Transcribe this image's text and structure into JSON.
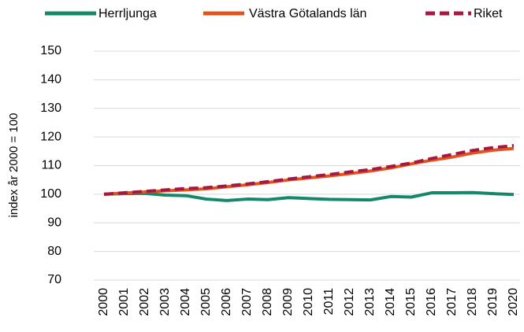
{
  "chart_data": {
    "type": "line",
    "y_label": "index år 2000 = 100",
    "categories": [
      "2000",
      "2001",
      "2002",
      "2003",
      "2004",
      "2005",
      "2006",
      "2007",
      "2008",
      "2009",
      "2010",
      "2011",
      "2012",
      "2013",
      "2014",
      "2015",
      "2016",
      "2017",
      "2018",
      "2019",
      "2020"
    ],
    "series": [
      {
        "name": "Herrljunga",
        "color": "#15876a",
        "dash": false,
        "values": [
          100,
          100.2,
          100.3,
          99.7,
          99.5,
          98.3,
          97.8,
          98.3,
          98.1,
          98.8,
          98.5,
          98.2,
          98.1,
          98.0,
          99.2,
          99.0,
          100.5,
          100.5,
          100.6,
          100.2,
          99.9
        ]
      },
      {
        "name": "Västra Götalands län",
        "color": "#e2541d",
        "dash": false,
        "values": [
          100,
          100.4,
          100.8,
          101.2,
          101.5,
          101.9,
          102.6,
          103.3,
          104.1,
          105.0,
          105.7,
          106.4,
          107.2,
          108.1,
          109.2,
          110.6,
          111.9,
          113.0,
          114.4,
          115.4,
          116.0
        ]
      },
      {
        "name": "Riket",
        "color": "#a8173f",
        "dash": true,
        "values": [
          100,
          100.5,
          101.0,
          101.5,
          102.0,
          102.3,
          102.9,
          103.6,
          104.4,
          105.3,
          106.1,
          106.9,
          107.8,
          108.6,
          109.7,
          110.9,
          112.5,
          113.9,
          115.3,
          116.3,
          117.0
        ]
      }
    ],
    "ylim": [
      70,
      150
    ],
    "yticks": [
      70,
      80,
      90,
      100,
      110,
      120,
      130,
      140,
      150
    ],
    "grid": true,
    "legend": "top"
  }
}
